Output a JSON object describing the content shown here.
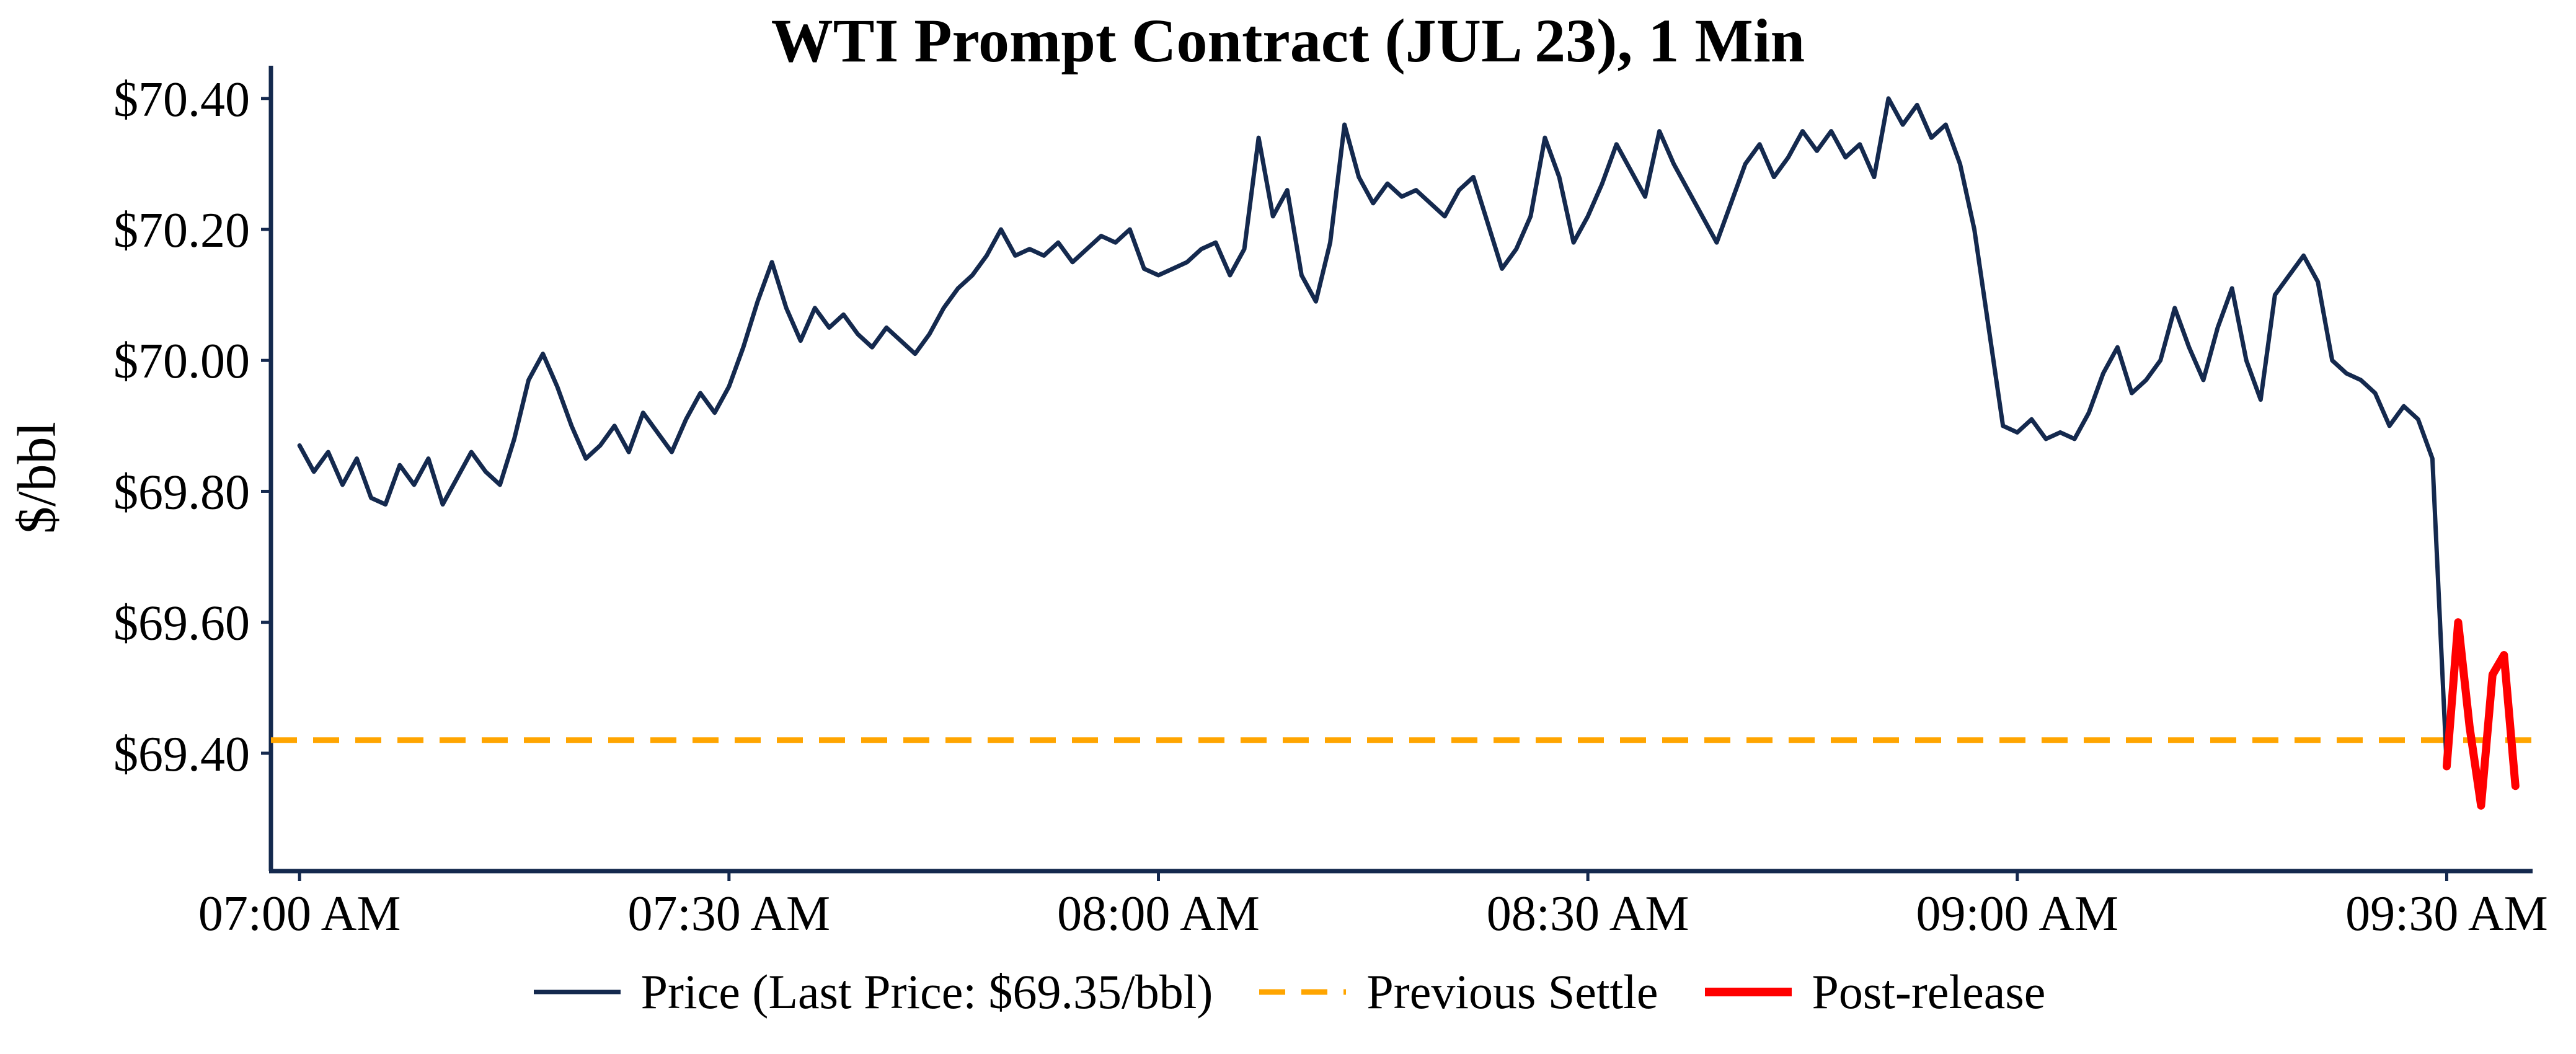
{
  "page": {
    "background": "#ffffff"
  },
  "chart_data": {
    "type": "line",
    "title": "WTI Prompt Contract (JUL 23), 1 Min",
    "ylabel": "$/bbl",
    "xlabel": "",
    "grid": false,
    "axis_color": "#14294e",
    "x_axis": {
      "unit": "minutes after 07:00 AM",
      "tick_minutes": [
        0,
        30,
        60,
        90,
        120,
        150
      ],
      "tick_labels": [
        "07:00 AM",
        "07:30 AM",
        "08:00 AM",
        "08:30 AM",
        "09:00 AM",
        "09:30 AM"
      ],
      "xlim": [
        -2,
        156
      ]
    },
    "y_axis": {
      "ticks": [
        69.4,
        69.6,
        69.8,
        70.0,
        70.2,
        70.4
      ],
      "tick_labels": [
        "$69.40",
        "$69.60",
        "$69.80",
        "$70.00",
        "$70.20",
        "$70.40"
      ],
      "ylim": [
        69.22,
        70.45
      ]
    },
    "previous_settle": {
      "value": 69.42,
      "color": "#FFA500",
      "style": "dashed"
    },
    "last_price": "$69.35/bbl",
    "series": [
      {
        "name": "Price",
        "color": "#14294e",
        "width": 7,
        "x_start_minute": 0,
        "x_step": 1,
        "y": [
          69.87,
          69.83,
          69.86,
          69.81,
          69.85,
          69.79,
          69.78,
          69.84,
          69.81,
          69.85,
          69.78,
          69.82,
          69.86,
          69.83,
          69.81,
          69.88,
          69.97,
          70.01,
          69.96,
          69.9,
          69.85,
          69.87,
          69.9,
          69.86,
          69.92,
          69.89,
          69.86,
          69.91,
          69.95,
          69.92,
          69.96,
          70.02,
          70.09,
          70.15,
          70.08,
          70.03,
          70.08,
          70.05,
          70.07,
          70.04,
          70.02,
          70.05,
          70.03,
          70.01,
          70.04,
          70.08,
          70.11,
          70.13,
          70.16,
          70.2,
          70.16,
          70.17,
          70.16,
          70.18,
          70.15,
          70.17,
          70.19,
          70.18,
          70.2,
          70.14,
          70.13,
          70.14,
          70.15,
          70.17,
          70.18,
          70.13,
          70.17,
          70.34,
          70.22,
          70.26,
          70.13,
          70.09,
          70.18,
          70.36,
          70.28,
          70.24,
          70.27,
          70.25,
          70.26,
          70.24,
          70.22,
          70.26,
          70.28,
          70.21,
          70.14,
          70.17,
          70.22,
          70.34,
          70.28,
          70.18,
          70.22,
          70.27,
          70.33,
          70.29,
          70.25,
          70.35,
          70.3,
          70.26,
          70.22,
          70.18,
          70.24,
          70.3,
          70.33,
          70.28,
          70.31,
          70.35,
          70.32,
          70.35,
          70.31,
          70.33,
          70.28,
          70.4,
          70.36,
          70.39,
          70.34,
          70.36,
          70.3,
          70.2,
          70.05,
          69.9,
          69.89,
          69.91,
          69.88,
          69.89,
          69.88,
          69.92,
          69.98,
          70.02,
          69.95,
          69.97,
          70.0,
          70.08,
          70.02,
          69.97,
          70.05,
          70.11,
          70.0,
          69.94,
          70.1,
          70.13,
          70.16,
          70.12,
          70.0,
          69.98,
          69.97,
          69.95,
          69.9,
          69.93,
          69.91,
          69.85,
          69.38
        ]
      },
      {
        "name": "Post-release",
        "color": "#FF0000",
        "width": 13,
        "x": [
          150,
          150.8,
          151.6,
          152.4,
          153.2,
          154.0,
          154.8
        ],
        "y": [
          69.38,
          69.6,
          69.44,
          69.32,
          69.52,
          69.55,
          69.35
        ]
      }
    ],
    "legend": {
      "position": "bottom-center",
      "items": [
        {
          "label": "Price (Last Price: $69.35/bbl)",
          "color": "#14294e",
          "dash": "solid",
          "width": 7
        },
        {
          "label": "Previous Settle",
          "color": "#FFA500",
          "dash": "dashed",
          "width": 9
        },
        {
          "label": "Post-release",
          "color": "#FF0000",
          "dash": "solid",
          "width": 14
        }
      ]
    }
  }
}
